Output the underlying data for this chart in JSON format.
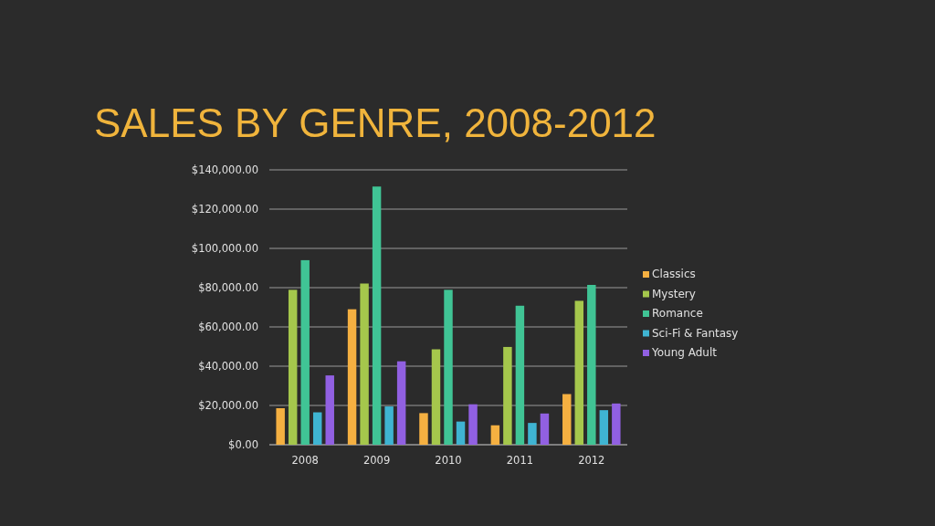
{
  "chart_data": {
    "type": "bar",
    "title": "SALES BY GENRE, 2008-2012",
    "categories": [
      "2008",
      "2009",
      "2010",
      "2011",
      "2012"
    ],
    "series": [
      {
        "name": "Classics",
        "color": "#f5b041",
        "values": [
          18600,
          69000,
          16100,
          9900,
          25800
        ]
      },
      {
        "name": "Mystery",
        "color": "#a5c74c",
        "values": [
          78900,
          82100,
          48600,
          49800,
          73300
        ]
      },
      {
        "name": "Romance",
        "color": "#40c495",
        "values": [
          94000,
          131500,
          78900,
          70800,
          81400
        ]
      },
      {
        "name": "Sci-Fi & Fantasy",
        "color": "#3fb4d2",
        "values": [
          16500,
          19500,
          11800,
          11100,
          17600
        ]
      },
      {
        "name": "Young Adult",
        "color": "#9160e2",
        "values": [
          35300,
          42500,
          20600,
          15900,
          21000
        ]
      }
    ],
    "ylim": [
      0,
      140000
    ],
    "yticks": [
      {
        "value": 0,
        "label": "$0.00"
      },
      {
        "value": 20000,
        "label": "$20,000.00"
      },
      {
        "value": 40000,
        "label": "$40,000.00"
      },
      {
        "value": 60000,
        "label": "$60,000.00"
      },
      {
        "value": 80000,
        "label": "$80,000.00"
      },
      {
        "value": 100000,
        "label": "$100,000.00"
      },
      {
        "value": 120000,
        "label": "$120,000.00"
      },
      {
        "value": 140000,
        "label": "$140,000.00"
      }
    ],
    "grid": "y",
    "legend": "right"
  }
}
